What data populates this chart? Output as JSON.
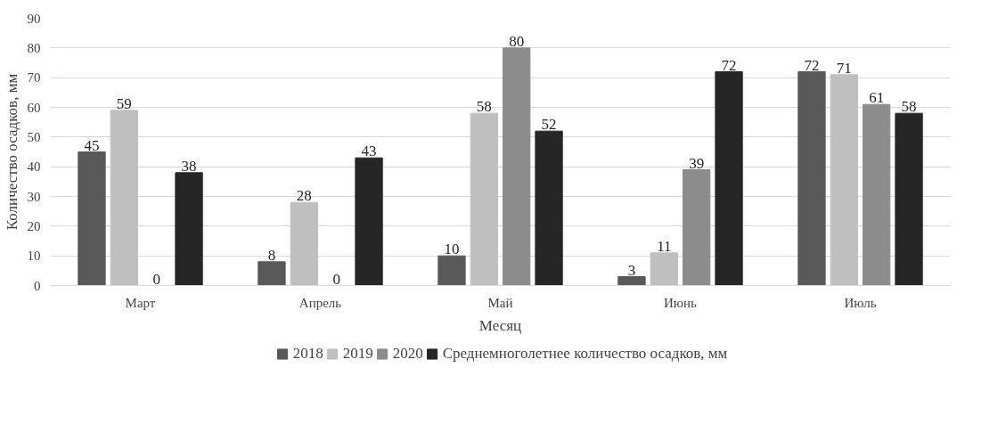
{
  "chart_data": {
    "type": "bar",
    "xlabel": "Месяц",
    "ylabel": "Количество осадков, мм",
    "categories": [
      "Март",
      "Апрель",
      "Май",
      "Июнь",
      "Июль"
    ],
    "series": [
      {
        "name": "2018",
        "color": "#595959",
        "values": [
          45,
          8,
          10,
          3,
          72
        ]
      },
      {
        "name": "2019",
        "color": "#bfbfbf",
        "values": [
          59,
          28,
          58,
          11,
          71
        ]
      },
      {
        "name": "2020",
        "color": "#8c8c8c",
        "values": [
          0,
          0,
          80,
          39,
          61
        ]
      },
      {
        "name": "Среднемноголетнее количество осадков, мм",
        "color": "#262626",
        "values": [
          38,
          43,
          52,
          72,
          58
        ]
      }
    ],
    "ylim": [
      0,
      90
    ],
    "yticks": [
      0,
      10,
      20,
      30,
      40,
      50,
      60,
      70,
      80,
      90
    ],
    "grid": "y",
    "legend": "bottom",
    "data_labels": true
  }
}
